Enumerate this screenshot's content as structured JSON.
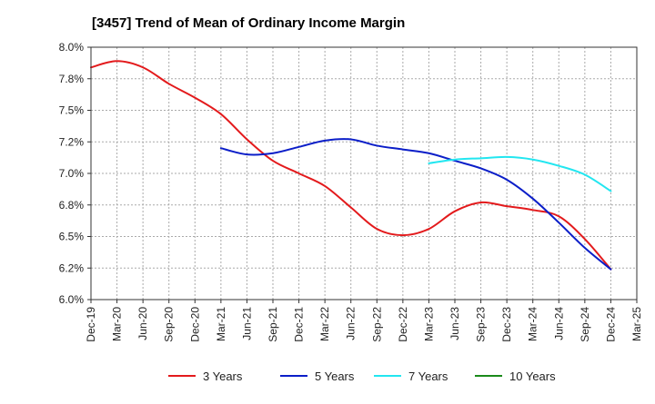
{
  "chart_data": {
    "type": "line",
    "title": "[3457]  Trend of Mean of Ordinary Income Margin",
    "xlabel": "",
    "ylabel": "",
    "ylim": [
      6.0,
      8.0
    ],
    "yticks": [
      6.0,
      6.25,
      6.5,
      6.75,
      7.0,
      7.25,
      7.5,
      7.75,
      8.0
    ],
    "ytick_labels": [
      "6.0%",
      "6.2%",
      "6.5%",
      "6.8%",
      "7.0%",
      "7.2%",
      "7.5%",
      "7.8%",
      "8.0%"
    ],
    "x_categories": [
      "Dec-19",
      "Mar-20",
      "Jun-20",
      "Sep-20",
      "Dec-20",
      "Mar-21",
      "Jun-21",
      "Sep-21",
      "Dec-21",
      "Mar-22",
      "Jun-22",
      "Sep-22",
      "Dec-22",
      "Mar-23",
      "Jun-23",
      "Sep-23",
      "Dec-23",
      "Mar-24",
      "Jun-24",
      "Sep-24",
      "Dec-24",
      "Mar-25"
    ],
    "grid": true,
    "legend_position": "bottom",
    "series": [
      {
        "name": "3 Years",
        "color": "#e31a1c",
        "values": [
          7.84,
          7.89,
          7.84,
          7.71,
          7.6,
          7.47,
          7.27,
          7.1,
          7.0,
          6.9,
          6.73,
          6.56,
          6.51,
          6.56,
          6.7,
          6.77,
          6.74,
          6.71,
          6.66,
          6.48,
          6.24,
          null
        ]
      },
      {
        "name": "5 Years",
        "color": "#0b1ec8",
        "values": [
          null,
          null,
          null,
          null,
          null,
          7.2,
          7.15,
          7.16,
          7.21,
          7.26,
          7.27,
          7.22,
          7.19,
          7.16,
          7.1,
          7.04,
          6.95,
          6.8,
          6.61,
          6.41,
          6.24,
          null
        ]
      },
      {
        "name": "7 Years",
        "color": "#22e6f0",
        "values": [
          null,
          null,
          null,
          null,
          null,
          null,
          null,
          null,
          null,
          null,
          null,
          null,
          null,
          7.08,
          7.11,
          7.12,
          7.13,
          7.11,
          7.06,
          6.99,
          6.86,
          null
        ]
      },
      {
        "name": "10 Years",
        "color": "#1a8a1a",
        "values": [
          null,
          null,
          null,
          null,
          null,
          null,
          null,
          null,
          null,
          null,
          null,
          null,
          null,
          null,
          null,
          null,
          null,
          null,
          null,
          null,
          null,
          null
        ]
      }
    ]
  }
}
